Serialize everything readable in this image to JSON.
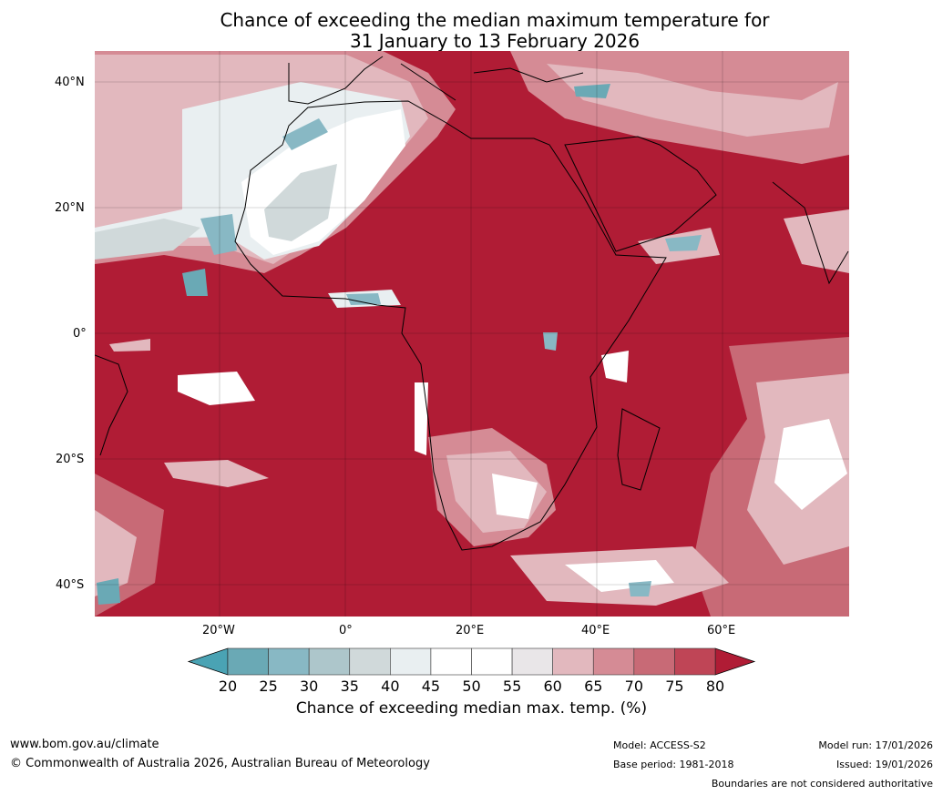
{
  "title": {
    "line1": "Chance of exceeding the median maximum temperature for",
    "line2": "31 January to 13 February 2026"
  },
  "map": {
    "lat_labels": [
      "40°N",
      "20°N",
      "0°",
      "20°S",
      "40°S"
    ],
    "lon_labels": [
      "20°W",
      "0°",
      "20°E",
      "40°E",
      "60°E"
    ],
    "lon_range": [
      -40,
      80
    ],
    "lat_range": [
      -45,
      45
    ]
  },
  "colorbar": {
    "ticks": [
      "20",
      "25",
      "30",
      "35",
      "40",
      "45",
      "50",
      "55",
      "60",
      "65",
      "70",
      "75",
      "80"
    ],
    "colors": [
      "#6aa9b5",
      "#88b8c4",
      "#adc6cb",
      "#d0d9da",
      "#e9eff1",
      "#ffffff",
      "#ffffff",
      "#e9e6e8",
      "#e2b8be",
      "#d58b95",
      "#c86a76",
      "#bf4556"
    ],
    "under_color": "#4aa3b4",
    "over_color": "#b01c35",
    "label": "Chance of exceeding median max. temp. (%)"
  },
  "footer": {
    "url": "www.bom.gov.au/climate",
    "copyright": "© Commonwealth of Australia 2026, Australian Bureau of Meteorology",
    "model": "Model: ACCESS-S2",
    "base_period": "Base period: 1981-2018",
    "model_run": "Model run: 17/01/2026",
    "issued": "Issued: 19/01/2026",
    "disclaimer": "Boundaries are not considered authoritative"
  }
}
